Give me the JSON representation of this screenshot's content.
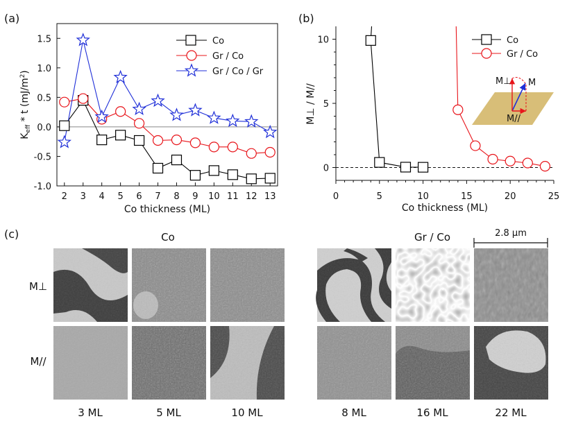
{
  "chart_data": [
    {
      "panel": "(a)",
      "type": "line",
      "xlabel": "Co thickness (ML)",
      "ylabel": "K_eff * t (mJ/m²)",
      "xlim": [
        1.6,
        13.4
      ],
      "ylim": [
        -1.0,
        1.75
      ],
      "xticks": [
        2,
        3,
        4,
        5,
        6,
        7,
        8,
        9,
        10,
        11,
        12,
        13
      ],
      "yticks": [
        -1.0,
        -0.5,
        0.0,
        0.5,
        1.0,
        1.5
      ],
      "ytick_labels": [
        "-1.0",
        "-0.5",
        "0.0",
        "0.5",
        "1.0",
        "1.5"
      ],
      "reference_line": 0,
      "legend_position": "top-right",
      "series": [
        {
          "name": "Co",
          "marker": "square",
          "color": "#000000",
          "x": [
            2,
            3,
            4,
            5,
            6,
            7,
            8,
            9,
            10,
            11,
            12,
            13
          ],
          "y": [
            0.02,
            0.45,
            -0.22,
            -0.14,
            -0.23,
            -0.7,
            -0.56,
            -0.82,
            -0.74,
            -0.81,
            -0.88,
            -0.87
          ]
        },
        {
          "name": "Gr / Co",
          "marker": "circle",
          "color": "#e8141a",
          "x": [
            2,
            3,
            4,
            5,
            6,
            7,
            8,
            9,
            10,
            11,
            12,
            13
          ],
          "y": [
            0.42,
            0.48,
            0.13,
            0.26,
            0.06,
            -0.23,
            -0.22,
            -0.27,
            -0.34,
            -0.34,
            -0.45,
            -0.43
          ]
        },
        {
          "name": "Gr / Co / Gr",
          "marker": "star",
          "color": "#1f2fd8",
          "x": [
            2,
            3,
            4,
            5,
            6,
            7,
            8,
            9,
            10,
            11,
            12,
            13
          ],
          "y": [
            -0.26,
            1.47,
            0.17,
            0.84,
            0.3,
            0.44,
            0.2,
            0.28,
            0.15,
            0.1,
            0.09,
            -0.09
          ]
        }
      ]
    },
    {
      "panel": "(b)",
      "type": "line",
      "xlabel": "Co thickness (ML)",
      "ylabel": "M⊥ / M//",
      "xlim": [
        0,
        25
      ],
      "ylim": [
        -1,
        11
      ],
      "xticks": [
        0,
        5,
        10,
        15,
        20,
        25
      ],
      "yticks": [
        0,
        5,
        10
      ],
      "reference_line": 0,
      "legend_position": "top-right",
      "series": [
        {
          "name": "Co",
          "marker": "square",
          "color": "#000000",
          "x": [
            4,
            5,
            8,
            10
          ],
          "y": [
            9.9,
            0.4,
            0.03,
            0.02
          ],
          "steep_lead_in_from": {
            "x": 4.1,
            "y": 11
          }
        },
        {
          "name": "Gr / Co",
          "marker": "circle",
          "color": "#e8141a",
          "x": [
            14,
            16,
            18,
            20,
            22,
            24
          ],
          "y": [
            4.5,
            1.7,
            0.65,
            0.5,
            0.35,
            0.1
          ],
          "steep_lead_in_from": {
            "x": 13.8,
            "y": 11
          }
        }
      ],
      "inset": {
        "labels": [
          "M⊥",
          "M",
          "M//"
        ]
      }
    }
  ],
  "figure": {
    "panel_a_label": "(a)",
    "panel_b_label": "(b)",
    "panel_c_label": "(c)",
    "legend_a": [
      "Co",
      "Gr / Co",
      "Gr / Co / Gr"
    ],
    "legend_b": [
      "Co",
      "Gr / Co"
    ]
  },
  "images": {
    "group_co_title": "Co",
    "group_grco_title": "Gr / Co",
    "scale_bar": "2.8 μm",
    "row_labels": [
      "M⊥",
      "M//"
    ],
    "co_columns": [
      "3 ML",
      "5 ML",
      "10 ML"
    ],
    "grco_columns": [
      "8 ML",
      "16 ML",
      "22 ML"
    ]
  },
  "colors": {
    "co": "#000000",
    "grco": "#e8141a",
    "grcogr": "#1f2fd8",
    "inset_plane": "#d8be78"
  }
}
